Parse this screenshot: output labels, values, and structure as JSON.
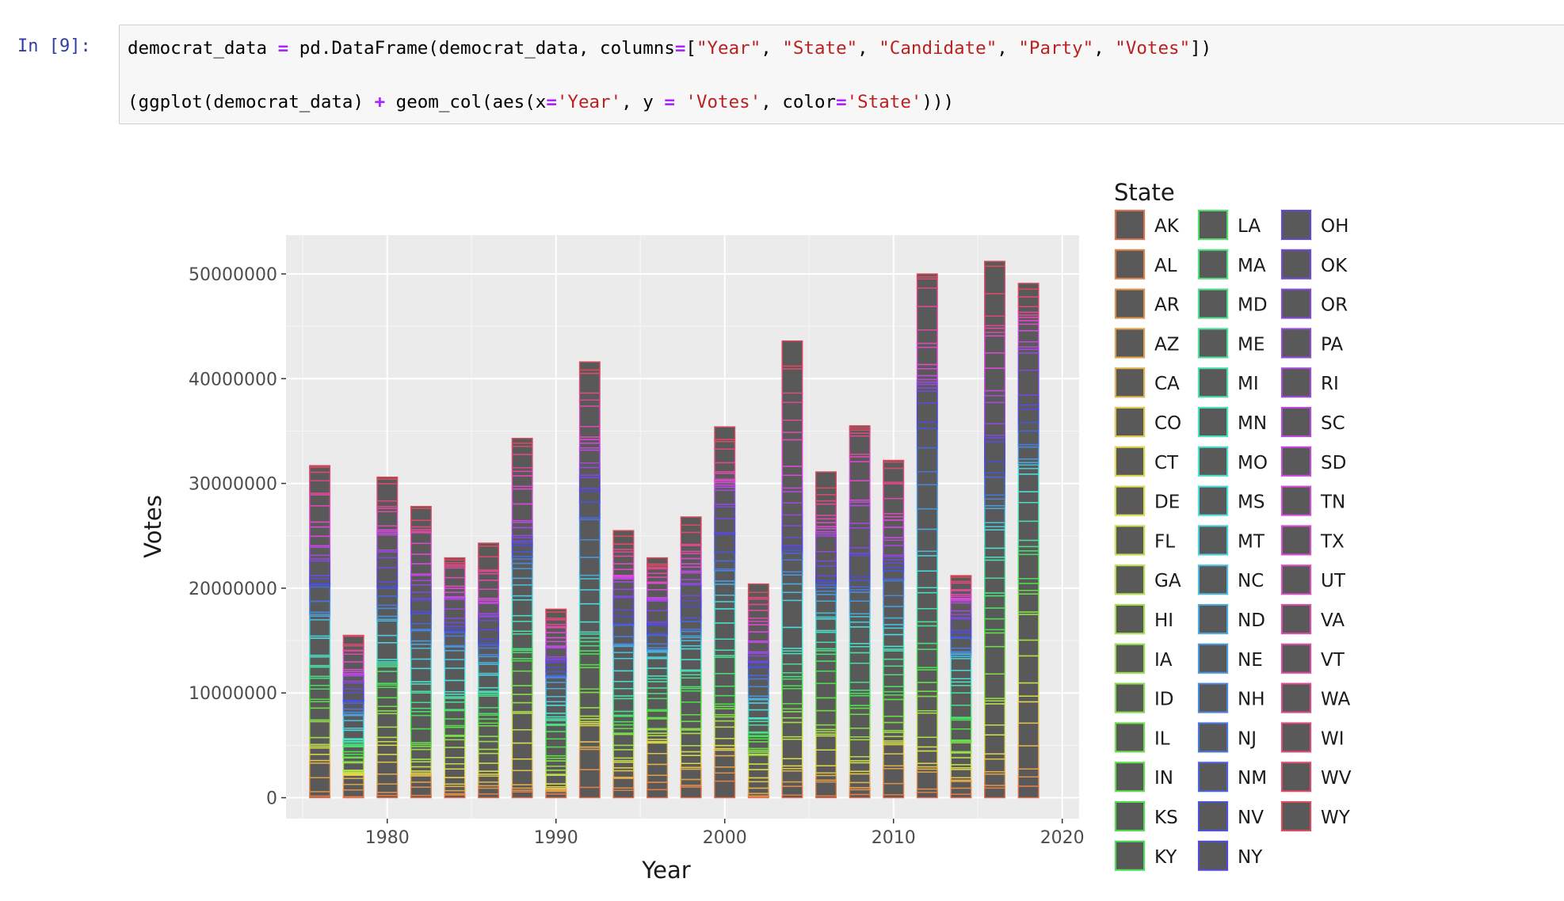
{
  "prompt": "In [9]:",
  "code": {
    "line1": [
      {
        "t": "democrat_data ",
        "k": "plain"
      },
      {
        "t": "=",
        "k": "op"
      },
      {
        "t": " pd.DataFrame(democrat_data, columns",
        "k": "plain"
      },
      {
        "t": "=",
        "k": "op"
      },
      {
        "t": "[",
        "k": "plain"
      },
      {
        "t": "\"Year\"",
        "k": "str"
      },
      {
        "t": ", ",
        "k": "plain"
      },
      {
        "t": "\"State\"",
        "k": "str"
      },
      {
        "t": ", ",
        "k": "plain"
      },
      {
        "t": "\"Candidate\"",
        "k": "str"
      },
      {
        "t": ", ",
        "k": "plain"
      },
      {
        "t": "\"Party\"",
        "k": "str"
      },
      {
        "t": ", ",
        "k": "plain"
      },
      {
        "t": "\"Votes\"",
        "k": "str"
      },
      {
        "t": "])",
        "k": "plain"
      }
    ],
    "line2": [
      {
        "t": "(ggplot(democrat_data) ",
        "k": "plain"
      },
      {
        "t": "+",
        "k": "op"
      },
      {
        "t": " geom_col(aes(x",
        "k": "plain"
      },
      {
        "t": "=",
        "k": "op"
      },
      {
        "t": "'Year'",
        "k": "str"
      },
      {
        "t": ", y ",
        "k": "plain"
      },
      {
        "t": "=",
        "k": "op"
      },
      {
        "t": " ",
        "k": "plain"
      },
      {
        "t": "'Votes'",
        "k": "str"
      },
      {
        "t": ", color",
        "k": "plain"
      },
      {
        "t": "=",
        "k": "op"
      },
      {
        "t": "'State'",
        "k": "str"
      },
      {
        "t": ")))",
        "k": "plain"
      }
    ]
  },
  "chart_data": {
    "type": "bar",
    "stacked": true,
    "title": "",
    "xlabel": "Year",
    "ylabel": "Votes",
    "xlim": [
      1974,
      2021
    ],
    "ylim": [
      -2000000,
      53700000
    ],
    "xticks": [
      1980,
      1990,
      2000,
      2010,
      2020
    ],
    "yticks": [
      0,
      10000000,
      20000000,
      30000000,
      40000000,
      50000000
    ],
    "ytick_labels": [
      "0",
      "10000000",
      "20000000",
      "30000000",
      "40000000",
      "50000000"
    ],
    "bar_width_years": 1.2,
    "x": [
      1976,
      1978,
      1980,
      1982,
      1984,
      1986,
      1988,
      1990,
      1992,
      1994,
      1996,
      1998,
      2000,
      2002,
      2004,
      2006,
      2008,
      2010,
      2012,
      2014,
      2016,
      2018
    ],
    "totals": [
      31700000,
      15500000,
      30600000,
      27800000,
      22900000,
      24300000,
      34300000,
      18000000,
      41600000,
      25500000,
      22900000,
      26800000,
      35400000,
      20400000,
      43600000,
      31100000,
      35500000,
      32200000,
      50000000,
      21200000,
      51200000,
      49100000
    ],
    "panel_background": "#ebebeb",
    "bar_fill": "#595959",
    "legend": {
      "title": "State",
      "placement": "right",
      "entries": [
        "AK",
        "AL",
        "AR",
        "AZ",
        "CA",
        "CO",
        "CT",
        "DE",
        "FL",
        "GA",
        "HI",
        "IA",
        "ID",
        "IL",
        "IN",
        "KS",
        "KY",
        "LA",
        "MA",
        "MD",
        "ME",
        "MI",
        "MN",
        "MO",
        "MS",
        "MT",
        "NC",
        "ND",
        "NE",
        "NH",
        "NJ",
        "NM",
        "NV",
        "NY",
        "OH",
        "OK",
        "OR",
        "PA",
        "RI",
        "SC",
        "SD",
        "TN",
        "TX",
        "UT",
        "VA",
        "VT",
        "WA",
        "WI",
        "WV",
        "WY"
      ]
    }
  }
}
